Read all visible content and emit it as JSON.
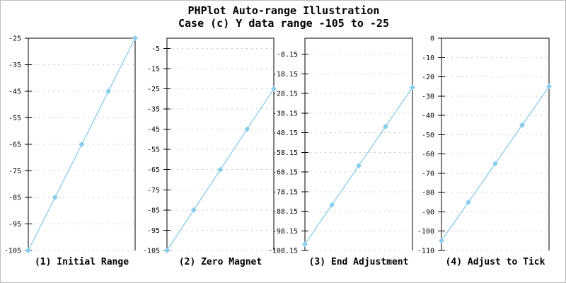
{
  "header": {
    "title": "PHPlot Auto-range Illustration",
    "subtitle": "Case (c) Y data range -105 to -25"
  },
  "colors": {
    "line": "#87CEEB",
    "marker": "#87CEEB",
    "grid": "#C8C8C8",
    "axis": "#000000",
    "text": "#000000",
    "image_border": "#BEBEBE",
    "background": "#FFFFFF"
  },
  "chart_data": [
    {
      "type": "line",
      "title": "(1) Initial Range",
      "x": [
        0,
        1,
        2,
        3,
        4
      ],
      "values": [
        -105,
        -85,
        -65,
        -45,
        -25
      ],
      "ylim": [
        -105,
        -25
      ],
      "yticks": [
        -25,
        -35,
        -45,
        -55,
        -65,
        -75,
        -85,
        -95,
        -105
      ],
      "ytick_labels": [
        "-25",
        "-35",
        "-45",
        "-55",
        "-65",
        "-75",
        "-85",
        "-95",
        "-105"
      ],
      "marker": "diamond",
      "grid": "dashed-horizontal",
      "legend": null
    },
    {
      "type": "line",
      "title": "(2) Zero Magnet",
      "x": [
        0,
        1,
        2,
        3,
        4
      ],
      "values": [
        -105,
        -85,
        -65,
        -45,
        -25
      ],
      "ylim": [
        -105,
        0
      ],
      "yticks": [
        -5,
        -15,
        -25,
        -35,
        -45,
        -55,
        -65,
        -75,
        -85,
        -95,
        -105
      ],
      "ytick_labels": [
        "-5",
        "-15",
        "-25",
        "-35",
        "-45",
        "-55",
        "-65",
        "-75",
        "-85",
        "-95",
        "-105"
      ],
      "marker": "diamond",
      "grid": "dashed-horizontal",
      "legend": null
    },
    {
      "type": "line",
      "title": "(3) End Adjustment",
      "x": [
        0,
        1,
        2,
        3,
        4
      ],
      "values": [
        -105,
        -85,
        -65,
        -45,
        -25
      ],
      "ylim": [
        -108.15,
        0
      ],
      "yticks": [
        -8.15,
        -18.15,
        -28.15,
        -38.15,
        -48.15,
        -58.15,
        -68.15,
        -78.15,
        -88.15,
        -98.15,
        -108.15
      ],
      "ytick_labels": [
        "-8.15",
        "-18.15",
        "-28.15",
        "-38.15",
        "-48.15",
        "-58.15",
        "-68.15",
        "-78.15",
        "-88.15",
        "-98.15",
        "-108.15"
      ],
      "marker": "diamond",
      "grid": "dashed-horizontal",
      "legend": null
    },
    {
      "type": "line",
      "title": "(4) Adjust to Tick",
      "x": [
        0,
        1,
        2,
        3,
        4
      ],
      "values": [
        -105,
        -85,
        -65,
        -45,
        -25
      ],
      "ylim": [
        -110,
        0
      ],
      "yticks": [
        0,
        -10,
        -20,
        -30,
        -40,
        -50,
        -60,
        -70,
        -80,
        -90,
        -100,
        -110
      ],
      "ytick_labels": [
        "0",
        "-10",
        "-20",
        "-30",
        "-40",
        "-50",
        "-60",
        "-70",
        "-80",
        "-90",
        "-100",
        "-110"
      ],
      "marker": "diamond",
      "grid": "dashed-horizontal",
      "legend": null
    }
  ]
}
